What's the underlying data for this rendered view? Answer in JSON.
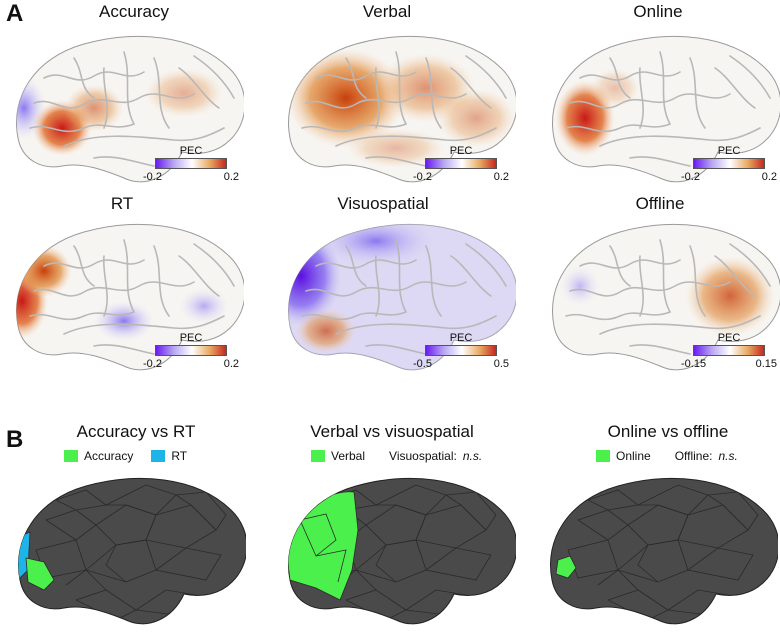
{
  "panelA": {
    "letter": "A",
    "maps": [
      {
        "title": "Accuracy",
        "colorbar": {
          "label": "PEC",
          "min": "-0.2",
          "max": "0.2"
        }
      },
      {
        "title": "Verbal",
        "colorbar": {
          "label": "PEC",
          "min": "-0.2",
          "max": "0.2"
        }
      },
      {
        "title": "Online",
        "colorbar": {
          "label": "PEC",
          "min": "-0.2",
          "max": "0.2"
        }
      },
      {
        "title": "RT",
        "colorbar": {
          "label": "PEC",
          "min": "-0.2",
          "max": "0.2"
        }
      },
      {
        "title": "Visuospatial",
        "colorbar": {
          "label": "PEC",
          "min": "-0.5",
          "max": "0.5"
        }
      },
      {
        "title": "Offline",
        "colorbar": {
          "label": "PEC",
          "min": "-0.15",
          "max": "0.15"
        }
      }
    ]
  },
  "panelB": {
    "letter": "B",
    "comparisons": [
      {
        "title": "Accuracy vs RT",
        "legend": [
          {
            "label": "Accuracy",
            "color": "#4cf04c"
          },
          {
            "label": "RT",
            "color": "#1fb4e8"
          }
        ],
        "note_prefix": "",
        "note_ns": ""
      },
      {
        "title": "Verbal vs visuospatial",
        "legend": [
          {
            "label": "Verbal",
            "color": "#4cf04c"
          }
        ],
        "note_prefix": "Visuospatial:",
        "note_ns": "n.s."
      },
      {
        "title": "Online vs offline",
        "legend": [
          {
            "label": "Online",
            "color": "#4cf04c"
          }
        ],
        "note_prefix": "Offline:",
        "note_ns": "n.s."
      }
    ]
  },
  "colors": {
    "positive": "#c8641a",
    "negative": "#6a3cf0",
    "significant": "#4cf04c",
    "rt": "#1fb4e8",
    "atlas": "#4a4a4a"
  }
}
